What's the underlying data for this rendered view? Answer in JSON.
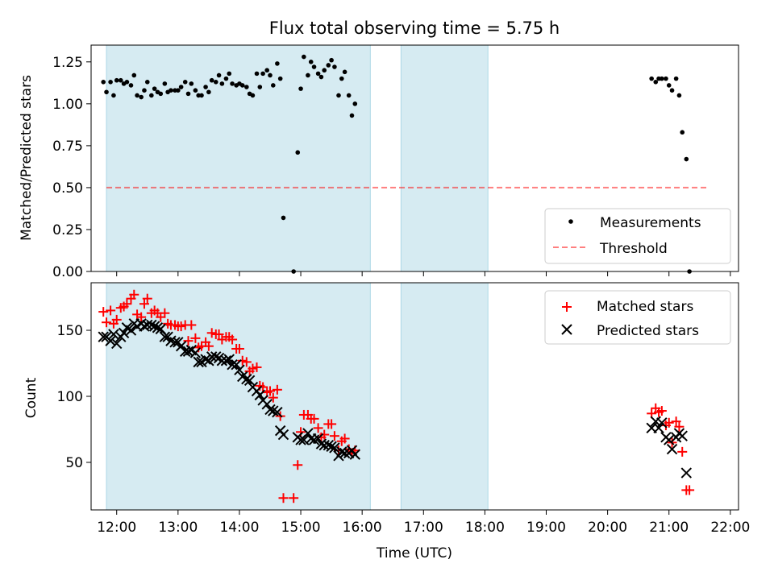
{
  "title": "Flux total observing time = 5.75 h",
  "colors": {
    "shade": "#add8e6",
    "threshold": "#ff0000",
    "measurement": "#000000",
    "matched": "#ff0000",
    "predicted": "#000000"
  },
  "chart_data": [
    {
      "type": "scatter",
      "ylabel": "Matched/Predicted stars",
      "xlim": [
        "11:35",
        "22:08"
      ],
      "ylim": [
        0,
        1.35
      ],
      "yticks": [
        "0.00",
        "0.25",
        "0.50",
        "0.75",
        "1.00",
        "1.25"
      ],
      "yticks_values": [
        0,
        0.25,
        0.5,
        0.75,
        1.0,
        1.25
      ],
      "legend": {
        "position": "bottom-right",
        "entries": [
          "Measurements",
          "Threshold"
        ]
      },
      "shaded_intervals": [
        [
          "11:50",
          "16:08"
        ],
        [
          "16:38",
          "18:03"
        ]
      ],
      "threshold": {
        "name": "Threshold",
        "y": 0.5,
        "x_range": [
          "11:50",
          "21:38"
        ]
      },
      "series": [
        {
          "name": "Measurements",
          "points": [
            [
              "11:47",
              1.13
            ],
            [
              "11:50",
              1.07
            ],
            [
              "11:54",
              1.13
            ],
            [
              "11:57",
              1.05
            ],
            [
              "12:00",
              1.14
            ],
            [
              "12:04",
              1.14
            ],
            [
              "12:07",
              1.12
            ],
            [
              "12:10",
              1.13
            ],
            [
              "12:14",
              1.11
            ],
            [
              "12:17",
              1.17
            ],
            [
              "12:20",
              1.05
            ],
            [
              "12:24",
              1.04
            ],
            [
              "12:27",
              1.08
            ],
            [
              "12:30",
              1.13
            ],
            [
              "12:34",
              1.05
            ],
            [
              "12:37",
              1.09
            ],
            [
              "12:40",
              1.07
            ],
            [
              "12:43",
              1.06
            ],
            [
              "12:47",
              1.12
            ],
            [
              "12:50",
              1.07
            ],
            [
              "12:53",
              1.08
            ],
            [
              "12:57",
              1.08
            ],
            [
              "13:00",
              1.08
            ],
            [
              "13:03",
              1.1
            ],
            [
              "13:07",
              1.13
            ],
            [
              "13:10",
              1.06
            ],
            [
              "13:13",
              1.12
            ],
            [
              "13:17",
              1.08
            ],
            [
              "13:20",
              1.05
            ],
            [
              "13:23",
              1.05
            ],
            [
              "13:27",
              1.1
            ],
            [
              "13:30",
              1.07
            ],
            [
              "13:33",
              1.14
            ],
            [
              "13:37",
              1.13
            ],
            [
              "13:40",
              1.17
            ],
            [
              "13:43",
              1.12
            ],
            [
              "13:47",
              1.15
            ],
            [
              "13:50",
              1.18
            ],
            [
              "13:53",
              1.12
            ],
            [
              "13:57",
              1.11
            ],
            [
              "14:00",
              1.12
            ],
            [
              "14:03",
              1.11
            ],
            [
              "14:07",
              1.1
            ],
            [
              "14:10",
              1.06
            ],
            [
              "14:13",
              1.05
            ],
            [
              "14:17",
              1.18
            ],
            [
              "14:20",
              1.1
            ],
            [
              "14:23",
              1.18
            ],
            [
              "14:27",
              1.2
            ],
            [
              "14:30",
              1.17
            ],
            [
              "14:33",
              1.11
            ],
            [
              "14:37",
              1.24
            ],
            [
              "14:40",
              1.15
            ],
            [
              "14:43",
              0.32
            ],
            [
              "14:53",
              0.0
            ],
            [
              "14:57",
              0.71
            ],
            [
              "15:00",
              1.09
            ],
            [
              "15:03",
              1.28
            ],
            [
              "15:07",
              1.17
            ],
            [
              "15:10",
              1.25
            ],
            [
              "15:13",
              1.22
            ],
            [
              "15:17",
              1.18
            ],
            [
              "15:20",
              1.16
            ],
            [
              "15:23",
              1.2
            ],
            [
              "15:27",
              1.23
            ],
            [
              "15:30",
              1.26
            ],
            [
              "15:33",
              1.22
            ],
            [
              "15:37",
              1.05
            ],
            [
              "15:40",
              1.15
            ],
            [
              "15:43",
              1.19
            ],
            [
              "15:47",
              1.05
            ],
            [
              "15:50",
              0.93
            ],
            [
              "15:53",
              1.0
            ],
            [
              "20:43",
              1.15
            ],
            [
              "20:47",
              1.13
            ],
            [
              "20:50",
              1.15
            ],
            [
              "20:53",
              1.15
            ],
            [
              "20:57",
              1.15
            ],
            [
              "21:00",
              1.11
            ],
            [
              "21:03",
              1.08
            ],
            [
              "21:07",
              1.15
            ],
            [
              "21:10",
              1.05
            ],
            [
              "21:13",
              0.83
            ],
            [
              "21:17",
              0.67
            ],
            [
              "21:20",
              0.0
            ]
          ]
        }
      ]
    },
    {
      "type": "scatter",
      "xlabel": "Time (UTC)",
      "ylabel": "Count",
      "xlim": [
        "11:35",
        "22:08"
      ],
      "ylim": [
        14,
        186
      ],
      "xticks": [
        "12:00",
        "13:00",
        "14:00",
        "15:00",
        "16:00",
        "17:00",
        "18:00",
        "19:00",
        "20:00",
        "21:00",
        "22:00"
      ],
      "yticks": [
        "50",
        "100",
        "150"
      ],
      "legend": {
        "position": "top-right",
        "entries": [
          "Matched stars",
          "Predicted stars"
        ]
      },
      "shaded_intervals": [
        [
          "11:50",
          "16:08"
        ],
        [
          "16:38",
          "18:03"
        ]
      ],
      "series": [
        {
          "name": "Matched stars",
          "points": [
            [
              "11:47",
              164
            ],
            [
              "11:50",
              156
            ],
            [
              "11:54",
              165
            ],
            [
              "11:57",
              155
            ],
            [
              "12:00",
              158
            ],
            [
              "12:04",
              167
            ],
            [
              "12:07",
              168
            ],
            [
              "12:10",
              170
            ],
            [
              "12:14",
              174
            ],
            [
              "12:17",
              177
            ],
            [
              "12:20",
              162
            ],
            [
              "12:24",
              160
            ],
            [
              "12:27",
              170
            ],
            [
              "12:30",
              174
            ],
            [
              "12:34",
              163
            ],
            [
              "12:37",
              165
            ],
            [
              "12:40",
              163
            ],
            [
              "12:43",
              160
            ],
            [
              "12:47",
              163
            ],
            [
              "12:50",
              155
            ],
            [
              "12:53",
              154
            ],
            [
              "12:57",
              154
            ],
            [
              "13:00",
              153
            ],
            [
              "13:03",
              153
            ],
            [
              "13:07",
              154
            ],
            [
              "13:10",
              142
            ],
            [
              "13:13",
              154
            ],
            [
              "13:17",
              144
            ],
            [
              "13:20",
              137
            ],
            [
              "13:23",
              138
            ],
            [
              "13:27",
              141
            ],
            [
              "13:30",
              138
            ],
            [
              "13:33",
              148
            ],
            [
              "13:37",
              147
            ],
            [
              "13:40",
              147
            ],
            [
              "13:43",
              143
            ],
            [
              "13:47",
              145
            ],
            [
              "13:50",
              145
            ],
            [
              "13:53",
              143
            ],
            [
              "13:57",
              136
            ],
            [
              "14:00",
              136
            ],
            [
              "14:03",
              127
            ],
            [
              "14:07",
              126
            ],
            [
              "14:10",
              119
            ],
            [
              "14:13",
              121
            ],
            [
              "14:17",
              122
            ],
            [
              "14:20",
              108
            ],
            [
              "14:23",
              107
            ],
            [
              "14:27",
              103
            ],
            [
              "14:30",
              104
            ],
            [
              "14:33",
              99
            ],
            [
              "14:37",
              105
            ],
            [
              "14:40",
              85
            ],
            [
              "14:43",
              23
            ],
            [
              "14:53",
              23
            ],
            [
              "14:57",
              48
            ],
            [
              "15:00",
              73
            ],
            [
              "15:03",
              86
            ],
            [
              "15:07",
              86
            ],
            [
              "15:10",
              83
            ],
            [
              "15:13",
              83
            ],
            [
              "15:17",
              76
            ],
            [
              "15:20",
              69
            ],
            [
              "15:23",
              71
            ],
            [
              "15:27",
              79
            ],
            [
              "15:30",
              79
            ],
            [
              "15:33",
              70
            ],
            [
              "15:37",
              59
            ],
            [
              "15:40",
              66
            ],
            [
              "15:43",
              68
            ],
            [
              "15:47",
              60
            ],
            [
              "15:50",
              57
            ],
            [
              "15:53",
              59
            ],
            [
              "20:43",
              87
            ],
            [
              "20:47",
              91
            ],
            [
              "20:50",
              88
            ],
            [
              "20:53",
              89
            ],
            [
              "20:57",
              78
            ],
            [
              "21:00",
              80
            ],
            [
              "21:03",
              65
            ],
            [
              "21:07",
              81
            ],
            [
              "21:10",
              77
            ],
            [
              "21:13",
              58
            ],
            [
              "21:17",
              29
            ],
            [
              "21:20",
              29
            ]
          ]
        },
        {
          "name": "Predicted stars",
          "points": [
            [
              "11:47",
              145
            ],
            [
              "11:50",
              145
            ],
            [
              "11:54",
              142
            ],
            [
              "11:57",
              147
            ],
            [
              "12:00",
              140
            ],
            [
              "12:04",
              145
            ],
            [
              "12:07",
              148
            ],
            [
              "12:10",
              152
            ],
            [
              "12:14",
              150
            ],
            [
              "12:17",
              155
            ],
            [
              "12:20",
              153
            ],
            [
              "12:24",
              155
            ],
            [
              "12:27",
              153
            ],
            [
              "12:30",
              154
            ],
            [
              "12:34",
              154
            ],
            [
              "12:37",
              153
            ],
            [
              "12:40",
              152
            ],
            [
              "12:43",
              151
            ],
            [
              "12:47",
              145
            ],
            [
              "12:50",
              145
            ],
            [
              "12:53",
              142
            ],
            [
              "12:57",
              141
            ],
            [
              "13:00",
              141
            ],
            [
              "13:03",
              138
            ],
            [
              "13:07",
              134
            ],
            [
              "13:10",
              134
            ],
            [
              "13:13",
              135
            ],
            [
              "13:17",
              133
            ],
            [
              "13:20",
              126
            ],
            [
              "13:23",
              126
            ],
            [
              "13:27",
              128
            ],
            [
              "13:30",
              127
            ],
            [
              "13:33",
              130
            ],
            [
              "13:37",
              130
            ],
            [
              "13:40",
              129
            ],
            [
              "13:43",
              127
            ],
            [
              "13:47",
              127
            ],
            [
              "13:50",
              128
            ],
            [
              "13:53",
              124
            ],
            [
              "13:57",
              124
            ],
            [
              "14:00",
              120
            ],
            [
              "14:03",
              115
            ],
            [
              "14:07",
              113
            ],
            [
              "14:10",
              112
            ],
            [
              "14:13",
              107
            ],
            [
              "14:17",
              104
            ],
            [
              "14:20",
              101
            ],
            [
              "14:23",
              97
            ],
            [
              "14:27",
              94
            ],
            [
              "14:30",
              90
            ],
            [
              "14:33",
              89
            ],
            [
              "14:37",
              88
            ],
            [
              "14:40",
              74
            ],
            [
              "14:43",
              71
            ],
            [
              "14:57",
              69
            ],
            [
              "15:00",
              67
            ],
            [
              "15:03",
              67
            ],
            [
              "15:07",
              72
            ],
            [
              "15:10",
              68
            ],
            [
              "15:13",
              67
            ],
            [
              "15:17",
              68
            ],
            [
              "15:20",
              64
            ],
            [
              "15:23",
              63
            ],
            [
              "15:27",
              63
            ],
            [
              "15:30",
              62
            ],
            [
              "15:33",
              61
            ],
            [
              "15:37",
              55
            ],
            [
              "15:40",
              58
            ],
            [
              "15:43",
              57
            ],
            [
              "15:47",
              57
            ],
            [
              "15:50",
              59
            ],
            [
              "15:53",
              56
            ],
            [
              "20:43",
              76
            ],
            [
              "20:47",
              81
            ],
            [
              "20:50",
              76
            ],
            [
              "20:53",
              80
            ],
            [
              "20:57",
              69
            ],
            [
              "21:00",
              67
            ],
            [
              "21:03",
              60
            ],
            [
              "21:07",
              69
            ],
            [
              "21:10",
              72
            ],
            [
              "21:13",
              70
            ],
            [
              "21:17",
              42
            ]
          ]
        }
      ]
    }
  ]
}
